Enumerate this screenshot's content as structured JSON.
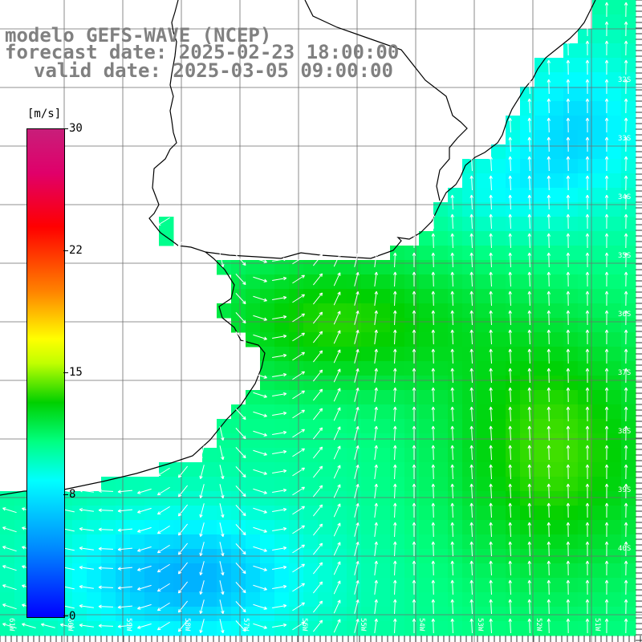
{
  "header": {
    "line1": "modelo GEFS-WAVE (NCEP)",
    "line2": "forecast date: 2025-02-23 18:00:00",
    "line3": "valid date: 2025-03-05 09:00:00"
  },
  "colorbar": {
    "unit": "[m/s]",
    "ticks": [
      "30",
      "22",
      "15",
      "8",
      "0"
    ],
    "min": 0,
    "max": 30,
    "stops": [
      "#0000ff",
      "#0088ff",
      "#00ffff",
      "#00ff80",
      "#00d000",
      "#c0ff00",
      "#ffff00",
      "#ff8000",
      "#ff0000",
      "#e0006a",
      "#c81e7a"
    ]
  },
  "map": {
    "longitude_labels": [
      "61W",
      "60W",
      "59W",
      "58W",
      "57W",
      "56W",
      "55W",
      "54W",
      "53W",
      "52W",
      "51W"
    ],
    "latitude_labels": [
      "32S",
      "33S",
      "34S",
      "35S",
      "36S",
      "37S",
      "38S",
      "39S",
      "40S"
    ],
    "colors": {
      "land": "#ffffff",
      "coast": "#000000",
      "grid": "#6e6e6e",
      "arrow": "#ffffff"
    }
  }
}
